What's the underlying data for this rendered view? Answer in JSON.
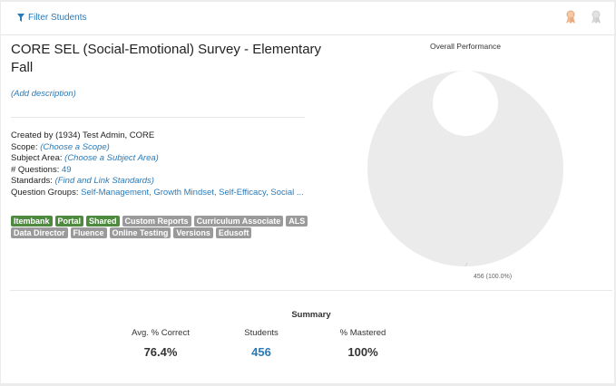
{
  "filter": {
    "label": "Filter Students"
  },
  "icons": {
    "filter": "funnel-icon",
    "top_right": [
      "ribbon-orange-icon",
      "ribbon-gray-icon"
    ]
  },
  "assessment": {
    "title": "CORE SEL (Social-Emotional) Survey - Elementary Fall",
    "add_description": "(Add description)"
  },
  "details": {
    "created_by": "Created by (1934) Test Admin, CORE",
    "scope_label": "Scope:",
    "scope_value": "(Choose a Scope)",
    "subject_label": "Subject Area:",
    "subject_value": "(Choose a Subject Area)",
    "questions_label": "# Questions:",
    "questions_value": "49",
    "standards_label": "Standards:",
    "standards_value": "(Find and Link Standards)",
    "groups_label": "Question Groups:",
    "groups_value": "Self-Management, Growth Mindset, Self-Efficacy, Social ..."
  },
  "tags": [
    {
      "label": "Itembank",
      "style": "green"
    },
    {
      "label": "Portal",
      "style": "green"
    },
    {
      "label": "Shared",
      "style": "green"
    },
    {
      "label": "Custom Reports",
      "style": "gray"
    },
    {
      "label": "Curriculum Associate",
      "style": "gray"
    },
    {
      "label": "ALS",
      "style": "gray"
    },
    {
      "label": "Data Director",
      "style": "gray"
    },
    {
      "label": "Fluence",
      "style": "gray"
    },
    {
      "label": "Online Testing",
      "style": "gray"
    },
    {
      "label": "Versions",
      "style": "gray"
    },
    {
      "label": "Edusoft",
      "style": "gray"
    }
  ],
  "chart_data": {
    "type": "pie",
    "title": "Overall Performance",
    "slices": [
      {
        "value": 456,
        "percent": 100.0,
        "color": "#ebebeb",
        "label": "456 (100.0%)"
      }
    ]
  },
  "summary": {
    "title": "Summary",
    "avg_label": "Avg. % Correct",
    "avg_value": "76.4%",
    "students_label": "Students",
    "students_value": "456",
    "mastered_label": "% Mastered",
    "mastered_value": "100%"
  },
  "colors": {
    "link": "#2a7ab8",
    "tag_green": "#4e8a3e",
    "tag_gray": "#9a9a9a"
  }
}
